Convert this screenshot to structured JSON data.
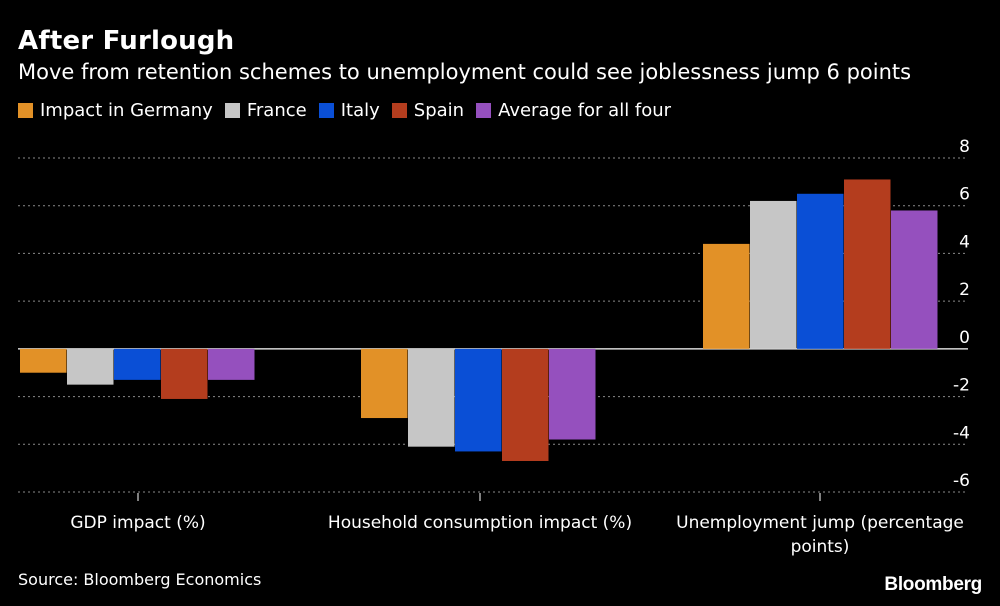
{
  "chart_data": {
    "type": "bar",
    "title": "After Furlough",
    "subtitle": "Move from retention schemes to unemployment could see joblessness jump 6 points",
    "categories": [
      "GDP impact (%)",
      "Household consumption impact (%)",
      "Unemployment jump (percentage points)"
    ],
    "series": [
      {
        "name": "Impact in Germany",
        "color": "#E29127",
        "values": [
          -1.0,
          -2.9,
          4.4
        ]
      },
      {
        "name": "France",
        "color": "#C6C6C6",
        "values": [
          -1.5,
          -4.1,
          6.2
        ]
      },
      {
        "name": "Italy",
        "color": "#0A4FD6",
        "values": [
          -1.3,
          -4.3,
          6.5
        ]
      },
      {
        "name": "Spain",
        "color": "#B43D1E",
        "values": [
          -2.1,
          -4.7,
          7.1
        ]
      },
      {
        "name": "Average for all four",
        "color": "#9550BE",
        "values": [
          -1.3,
          -3.8,
          5.8
        ]
      }
    ],
    "ylim": [
      -6,
      8
    ],
    "yticks": [
      "8",
      "6",
      "4",
      "2",
      "0",
      "-2",
      "-4",
      "-6"
    ],
    "ytick_values": [
      8,
      6,
      4,
      2,
      0,
      -2,
      -4,
      -6
    ],
    "grid": true,
    "legend_position": "top-left"
  },
  "source": "Source: Bloomberg Economics",
  "logo": "Bloomberg"
}
